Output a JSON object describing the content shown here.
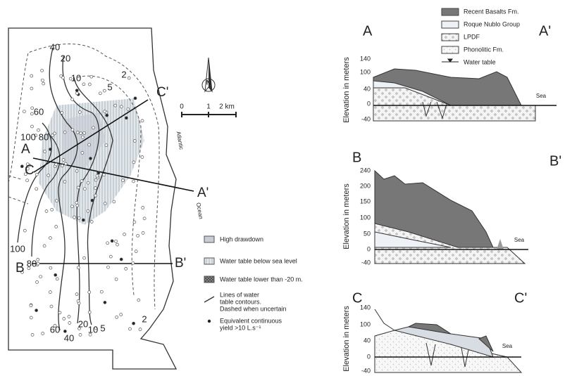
{
  "map": {
    "contour_labels": [
      "40",
      "20",
      "10",
      "2",
      "5",
      "60",
      "100",
      "80",
      "100",
      "80",
      "60",
      "40",
      "20",
      "10",
      "5",
      "2"
    ],
    "section_labels": [
      "A",
      "C'",
      "C",
      "A'",
      "B",
      "B'"
    ],
    "scale": [
      "0",
      "1",
      "2 km"
    ],
    "north": "N",
    "ocean": [
      "Atlantic",
      "Ocean"
    ],
    "legend": [
      {
        "lines": [
          "High drawdown"
        ]
      },
      {
        "lines": [
          "Water table below sea level"
        ]
      },
      {
        "lines": [
          "Water table lower than -20 m."
        ]
      },
      {
        "lines": [
          "Lines of water",
          "table contours.",
          "Dashed when uncertain"
        ]
      },
      {
        "lines": [
          "Equivalent continuous",
          "yield >10 L.s⁻¹"
        ]
      }
    ]
  },
  "sections": {
    "legend": [
      "Recent Basalts Fm.",
      "Roque Nublo Group",
      "LPDF",
      "Phonolitic Fm.",
      "Water table"
    ],
    "axis_label": "Elevation in meters",
    "profiles": [
      {
        "start": "A",
        "end": "A'",
        "yticks": [
          "140",
          "100",
          "40",
          "0",
          "-40"
        ],
        "sea": "Sea"
      },
      {
        "start": "B",
        "end": "B'",
        "yticks": [
          "240",
          "200",
          "150",
          "100",
          "50",
          "0",
          "-40"
        ],
        "sea": "Sea"
      },
      {
        "start": "C",
        "end": "C'",
        "yticks": [
          "140",
          "100",
          "40",
          "0",
          "-40"
        ],
        "sea": "Sea"
      }
    ]
  }
}
